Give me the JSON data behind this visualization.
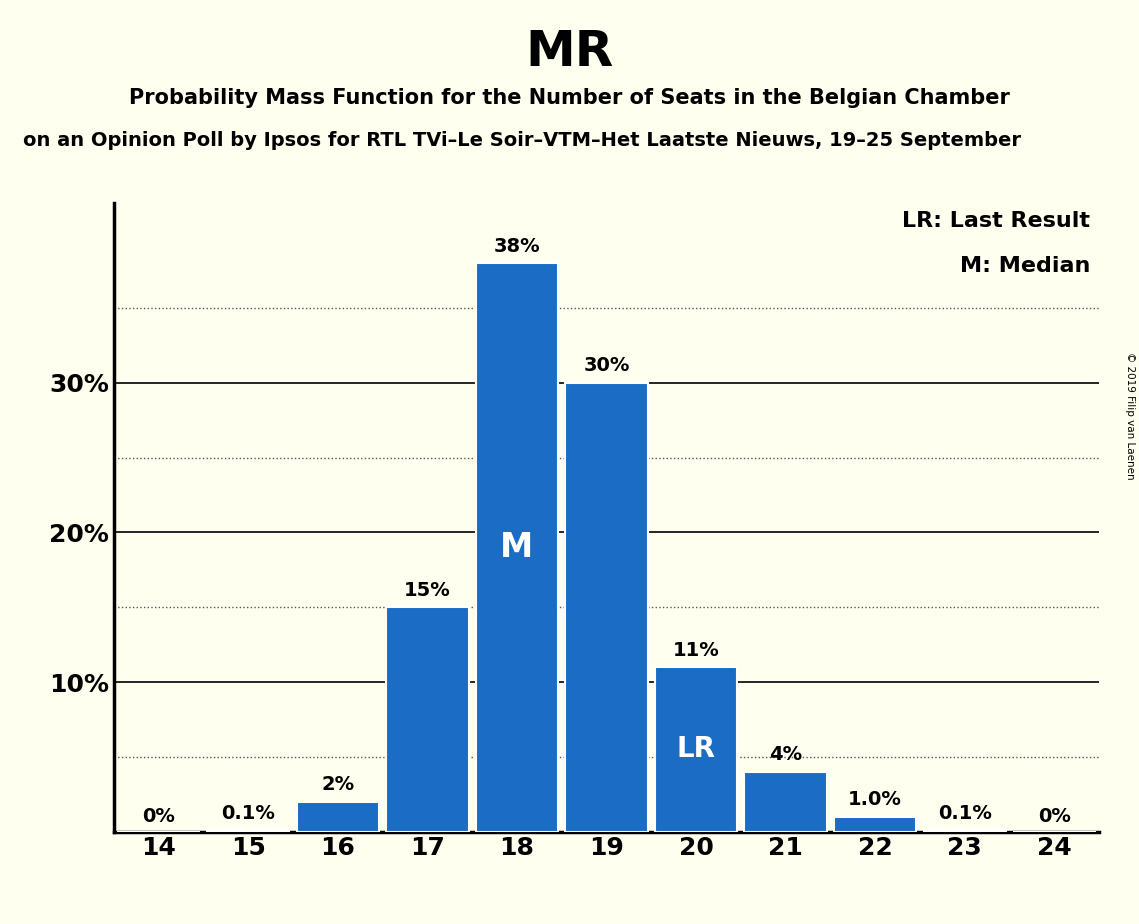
{
  "title": "MR",
  "subtitle1": "Probability Mass Function for the Number of Seats in the Belgian Chamber",
  "subtitle2": "on an Opinion Poll by Ipsos for RTL TVi–Le Soir–VTM–Het Laatste Nieuws, 19–25 September",
  "copyright": "© 2019 Filip van Laenen",
  "seats": [
    14,
    15,
    16,
    17,
    18,
    19,
    20,
    21,
    22,
    23,
    24
  ],
  "probabilities": [
    0.0,
    0.1,
    2.0,
    15.0,
    38.0,
    30.0,
    11.0,
    4.0,
    1.0,
    0.1,
    0.0
  ],
  "bar_labels": [
    "0%",
    "0.1%",
    "2%",
    "15%",
    "38%",
    "30%",
    "11%",
    "4%",
    "1.0%",
    "0.1%",
    "0%"
  ],
  "bar_color": "#1a6cc4",
  "background_color": "#fffff0",
  "median_seat": 18,
  "lr_seat": 20,
  "median_label": "M",
  "lr_label": "LR",
  "legend_lr": "LR: Last Result",
  "legend_m": "M: Median",
  "solid_yticks": [
    10,
    20,
    30
  ],
  "dotted_yticks": [
    5,
    15,
    25,
    35
  ],
  "ylim": [
    0,
    42
  ],
  "xlim": [
    13.5,
    24.5
  ]
}
